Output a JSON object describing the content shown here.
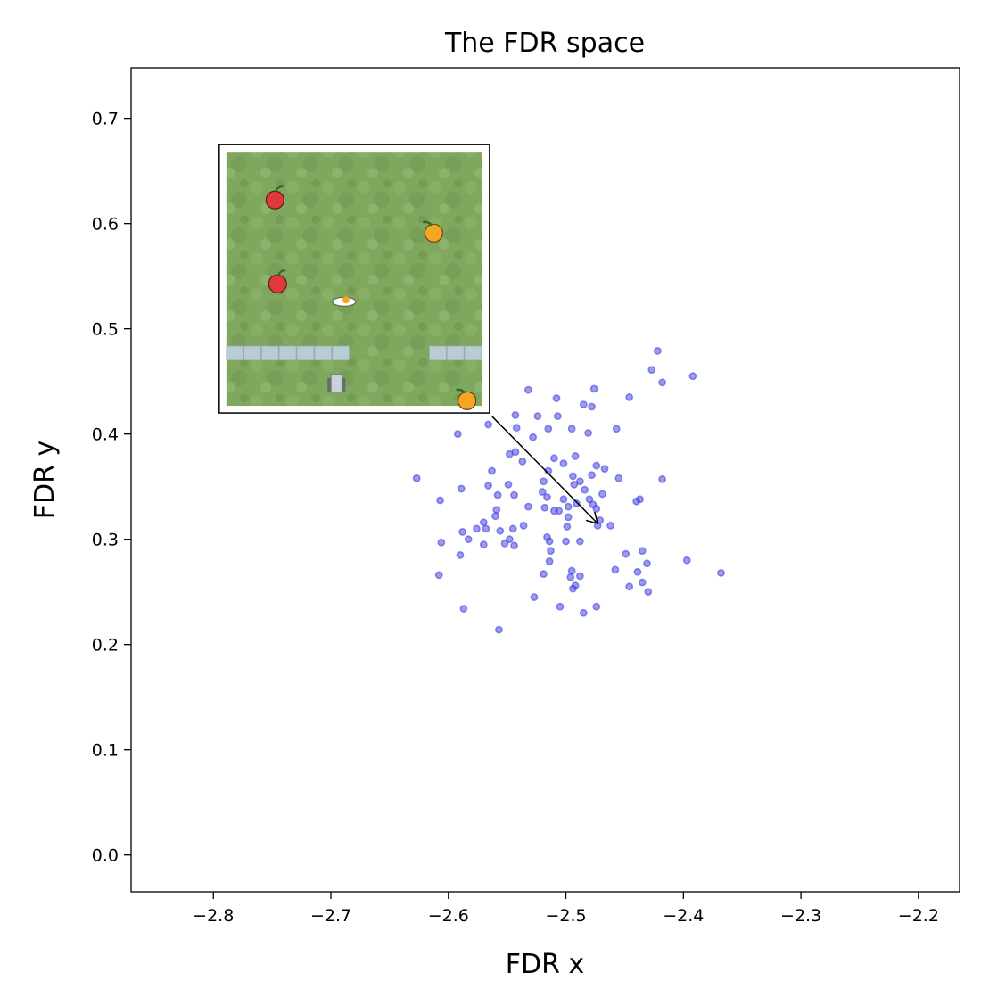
{
  "chart_data": {
    "type": "scatter",
    "title": "The FDR space",
    "xlabel": "FDR x",
    "ylabel": "FDR y",
    "xlim": [
      -2.87,
      -2.165
    ],
    "ylim": [
      -0.035,
      0.748
    ],
    "xticks": [
      -2.8,
      -2.7,
      -2.6,
      -2.5,
      -2.4,
      -2.3,
      -2.2
    ],
    "xtick_labels": [
      "−2.8",
      "−2.7",
      "−2.6",
      "−2.5",
      "−2.4",
      "−2.3",
      "−2.2"
    ],
    "yticks": [
      0.0,
      0.1,
      0.2,
      0.3,
      0.4,
      0.5,
      0.6,
      0.7
    ],
    "ytick_labels": [
      "0.0",
      "0.1",
      "0.2",
      "0.3",
      "0.4",
      "0.5",
      "0.6",
      "0.7"
    ],
    "grid": false,
    "point_color": "#3a3ae0",
    "annotation": {
      "arrow_target": {
        "x": -2.473,
        "y": 0.315
      },
      "inset_image": "grid-world game frame with apples, oranges, egg, wall blocks and agent",
      "inset_extent": {
        "x": [
          -2.795,
          -2.565
        ],
        "y": [
          0.42,
          0.675
        ]
      }
    },
    "series": [
      {
        "points": [
          [
            -2.422,
            0.479
          ],
          [
            -2.392,
            0.455
          ],
          [
            -2.427,
            0.461
          ],
          [
            -2.418,
            0.449
          ],
          [
            -2.476,
            0.443
          ],
          [
            -2.446,
            0.435
          ],
          [
            -2.532,
            0.442
          ],
          [
            -2.508,
            0.434
          ],
          [
            -2.569,
            0.435
          ],
          [
            -2.485,
            0.428
          ],
          [
            -2.478,
            0.426
          ],
          [
            -2.543,
            0.418
          ],
          [
            -2.524,
            0.417
          ],
          [
            -2.507,
            0.417
          ],
          [
            -2.457,
            0.405
          ],
          [
            -2.542,
            0.406
          ],
          [
            -2.528,
            0.397
          ],
          [
            -2.592,
            0.4
          ],
          [
            -2.495,
            0.405
          ],
          [
            -2.481,
            0.401
          ],
          [
            -2.566,
            0.409
          ],
          [
            -2.515,
            0.405
          ],
          [
            -2.543,
            0.383
          ],
          [
            -2.548,
            0.381
          ],
          [
            -2.51,
            0.377
          ],
          [
            -2.492,
            0.379
          ],
          [
            -2.502,
            0.372
          ],
          [
            -2.537,
            0.374
          ],
          [
            -2.474,
            0.37
          ],
          [
            -2.467,
            0.367
          ],
          [
            -2.515,
            0.365
          ],
          [
            -2.455,
            0.358
          ],
          [
            -2.418,
            0.357
          ],
          [
            -2.627,
            0.358
          ],
          [
            -2.563,
            0.365
          ],
          [
            -2.549,
            0.352
          ],
          [
            -2.566,
            0.351
          ],
          [
            -2.589,
            0.348
          ],
          [
            -2.519,
            0.355
          ],
          [
            -2.493,
            0.352
          ],
          [
            -2.488,
            0.355
          ],
          [
            -2.478,
            0.361
          ],
          [
            -2.484,
            0.347
          ],
          [
            -2.52,
            0.345
          ],
          [
            -2.544,
            0.342
          ],
          [
            -2.558,
            0.342
          ],
          [
            -2.469,
            0.343
          ],
          [
            -2.607,
            0.337
          ],
          [
            -2.516,
            0.34
          ],
          [
            -2.502,
            0.338
          ],
          [
            -2.48,
            0.338
          ],
          [
            -2.491,
            0.334
          ],
          [
            -2.477,
            0.333
          ],
          [
            -2.44,
            0.336
          ],
          [
            -2.437,
            0.338
          ],
          [
            -2.518,
            0.33
          ],
          [
            -2.532,
            0.331
          ],
          [
            -2.51,
            0.327
          ],
          [
            -2.498,
            0.331
          ],
          [
            -2.506,
            0.327
          ],
          [
            -2.474,
            0.329
          ],
          [
            -2.559,
            0.328
          ],
          [
            -2.56,
            0.322
          ],
          [
            -2.498,
            0.321
          ],
          [
            -2.57,
            0.316
          ],
          [
            -2.576,
            0.31
          ],
          [
            -2.536,
            0.313
          ],
          [
            -2.545,
            0.31
          ],
          [
            -2.499,
            0.312
          ],
          [
            -2.471,
            0.318
          ],
          [
            -2.473,
            0.313
          ],
          [
            -2.588,
            0.307
          ],
          [
            -2.568,
            0.31
          ],
          [
            -2.583,
            0.3
          ],
          [
            -2.556,
            0.308
          ],
          [
            -2.548,
            0.3
          ],
          [
            -2.552,
            0.296
          ],
          [
            -2.5,
            0.298
          ],
          [
            -2.516,
            0.302
          ],
          [
            -2.514,
            0.298
          ],
          [
            -2.544,
            0.294
          ],
          [
            -2.488,
            0.298
          ],
          [
            -2.57,
            0.295
          ],
          [
            -2.606,
            0.297
          ],
          [
            -2.513,
            0.289
          ],
          [
            -2.435,
            0.289
          ],
          [
            -2.449,
            0.286
          ],
          [
            -2.59,
            0.285
          ],
          [
            -2.514,
            0.279
          ],
          [
            -2.397,
            0.28
          ],
          [
            -2.368,
            0.268
          ],
          [
            -2.431,
            0.277
          ],
          [
            -2.458,
            0.271
          ],
          [
            -2.439,
            0.269
          ],
          [
            -2.495,
            0.27
          ],
          [
            -2.519,
            0.267
          ],
          [
            -2.496,
            0.264
          ],
          [
            -2.608,
            0.266
          ],
          [
            -2.488,
            0.265
          ],
          [
            -2.492,
            0.256
          ],
          [
            -2.435,
            0.259
          ],
          [
            -2.446,
            0.255
          ],
          [
            -2.43,
            0.25
          ],
          [
            -2.494,
            0.253
          ],
          [
            -2.527,
            0.245
          ],
          [
            -2.505,
            0.236
          ],
          [
            -2.587,
            0.234
          ],
          [
            -2.474,
            0.236
          ],
          [
            -2.485,
            0.23
          ],
          [
            -2.557,
            0.214
          ],
          [
            -2.462,
            0.313
          ],
          [
            -2.494,
            0.36
          ]
        ]
      }
    ]
  }
}
